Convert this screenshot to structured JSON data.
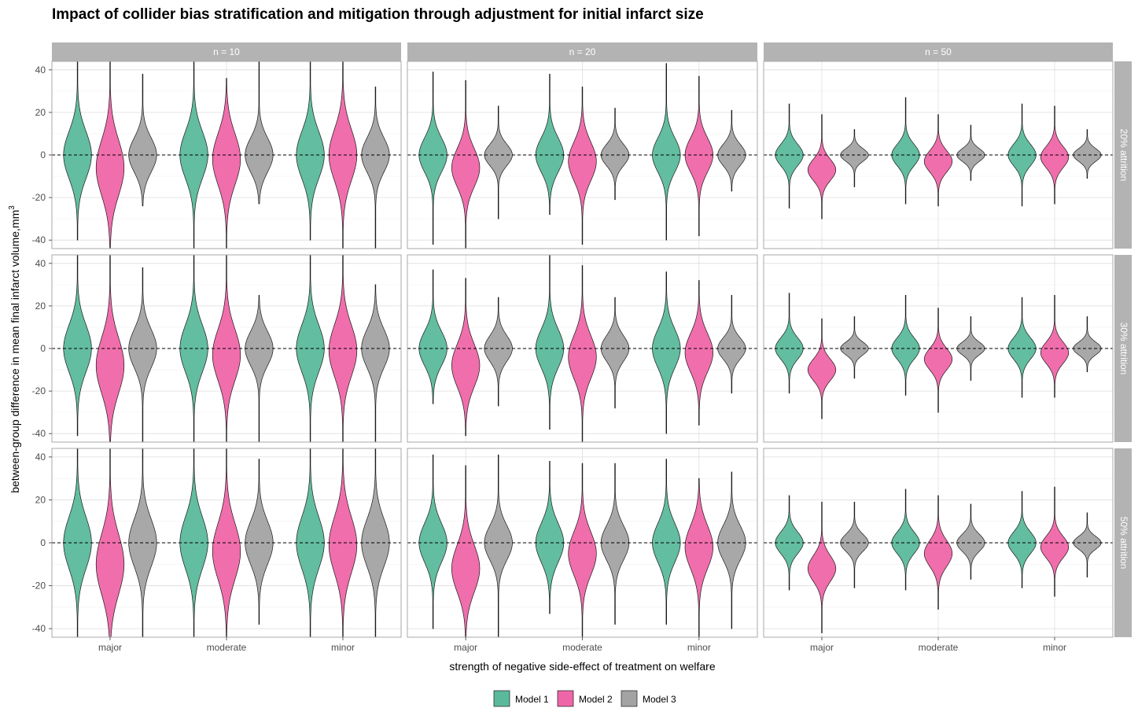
{
  "chart_data": {
    "type": "violin",
    "title": "Impact of collider bias stratification and mitigation through adjustment for initial infarct size",
    "xlabel": "strength of negative side-effect of treatment on welfare",
    "ylabel": "between-group difference in mean final infarct volume,mm",
    "ylabel_superscript": "3",
    "ylim": [
      -44,
      44
    ],
    "y_ticks": [
      -40,
      -20,
      0,
      20,
      40
    ],
    "reference_line_y": 0,
    "grid": true,
    "legend_position": "bottom",
    "categories": [
      "major",
      "moderate",
      "minor"
    ],
    "col_facets": [
      "n = 10",
      "n = 20",
      "n = 50"
    ],
    "row_facets": [
      "20% attrition",
      "30% attrition",
      "50% attrition"
    ],
    "series": [
      {
        "name": "Model 1",
        "color": "#5bb99b"
      },
      {
        "name": "Model 2",
        "color": "#ef66a8"
      },
      {
        "name": "Model 3",
        "color": "#a3a3a3"
      }
    ],
    "panels": [
      {
        "row": "20% attrition",
        "col": "n = 10",
        "violins": [
          {
            "category": "major",
            "series": "Model 1",
            "center": 0,
            "lo": -40,
            "hi": 44,
            "sd": 11
          },
          {
            "category": "major",
            "series": "Model 2",
            "center": -6,
            "lo": -44,
            "hi": 44,
            "sd": 13
          },
          {
            "category": "major",
            "series": "Model 3",
            "center": 0,
            "lo": -24,
            "hi": 38,
            "sd": 8
          },
          {
            "category": "moderate",
            "series": "Model 1",
            "center": 0,
            "lo": -44,
            "hi": 44,
            "sd": 11
          },
          {
            "category": "moderate",
            "series": "Model 2",
            "center": -2,
            "lo": -44,
            "hi": 36,
            "sd": 12
          },
          {
            "category": "moderate",
            "series": "Model 3",
            "center": 0,
            "lo": -23,
            "hi": 44,
            "sd": 8
          },
          {
            "category": "minor",
            "series": "Model 1",
            "center": 0,
            "lo": -40,
            "hi": 44,
            "sd": 11
          },
          {
            "category": "minor",
            "series": "Model 2",
            "center": 0,
            "lo": -44,
            "hi": 44,
            "sd": 12
          },
          {
            "category": "minor",
            "series": "Model 3",
            "center": 0,
            "lo": -44,
            "hi": 32,
            "sd": 8
          }
        ]
      },
      {
        "row": "20% attrition",
        "col": "n = 20",
        "violins": [
          {
            "category": "major",
            "series": "Model 1",
            "center": 0,
            "lo": -42,
            "hi": 39,
            "sd": 8
          },
          {
            "category": "major",
            "series": "Model 2",
            "center": -6,
            "lo": -44,
            "hi": 35,
            "sd": 9
          },
          {
            "category": "major",
            "series": "Model 3",
            "center": 0,
            "lo": -30,
            "hi": 23,
            "sd": 5
          },
          {
            "category": "moderate",
            "series": "Model 1",
            "center": 0,
            "lo": -28,
            "hi": 38,
            "sd": 8
          },
          {
            "category": "moderate",
            "series": "Model 2",
            "center": -3,
            "lo": -42,
            "hi": 32,
            "sd": 9
          },
          {
            "category": "moderate",
            "series": "Model 3",
            "center": 0,
            "lo": -21,
            "hi": 22,
            "sd": 5
          },
          {
            "category": "minor",
            "series": "Model 1",
            "center": 0,
            "lo": -40,
            "hi": 43,
            "sd": 8
          },
          {
            "category": "minor",
            "series": "Model 2",
            "center": 0,
            "lo": -38,
            "hi": 37,
            "sd": 8
          },
          {
            "category": "minor",
            "series": "Model 3",
            "center": 0,
            "lo": -17,
            "hi": 21,
            "sd": 5
          }
        ]
      },
      {
        "row": "20% attrition",
        "col": "n = 50",
        "violins": [
          {
            "category": "major",
            "series": "Model 1",
            "center": 0,
            "lo": -25,
            "hi": 24,
            "sd": 5
          },
          {
            "category": "major",
            "series": "Model 2",
            "center": -7,
            "lo": -30,
            "hi": 19,
            "sd": 5
          },
          {
            "category": "major",
            "series": "Model 3",
            "center": 0,
            "lo": -15,
            "hi": 12,
            "sd": 3
          },
          {
            "category": "moderate",
            "series": "Model 1",
            "center": 0,
            "lo": -23,
            "hi": 27,
            "sd": 5
          },
          {
            "category": "moderate",
            "series": "Model 2",
            "center": -3,
            "lo": -24,
            "hi": 19,
            "sd": 5
          },
          {
            "category": "moderate",
            "series": "Model 3",
            "center": 0,
            "lo": -12,
            "hi": 14,
            "sd": 3
          },
          {
            "category": "minor",
            "series": "Model 1",
            "center": 0,
            "lo": -24,
            "hi": 24,
            "sd": 5
          },
          {
            "category": "minor",
            "series": "Model 2",
            "center": -1,
            "lo": -23,
            "hi": 23,
            "sd": 5
          },
          {
            "category": "minor",
            "series": "Model 3",
            "center": 0,
            "lo": -11,
            "hi": 12,
            "sd": 3
          }
        ]
      },
      {
        "row": "30% attrition",
        "col": "n = 10",
        "violins": [
          {
            "category": "major",
            "series": "Model 1",
            "center": 0,
            "lo": -41,
            "hi": 44,
            "sd": 11
          },
          {
            "category": "major",
            "series": "Model 2",
            "center": -8,
            "lo": -44,
            "hi": 44,
            "sd": 13
          },
          {
            "category": "major",
            "series": "Model 3",
            "center": 0,
            "lo": -44,
            "hi": 38,
            "sd": 9
          },
          {
            "category": "moderate",
            "series": "Model 1",
            "center": 0,
            "lo": -44,
            "hi": 44,
            "sd": 11
          },
          {
            "category": "moderate",
            "series": "Model 2",
            "center": -3,
            "lo": -44,
            "hi": 44,
            "sd": 12
          },
          {
            "category": "moderate",
            "series": "Model 3",
            "center": 0,
            "lo": -44,
            "hi": 25,
            "sd": 8
          },
          {
            "category": "minor",
            "series": "Model 1",
            "center": 0,
            "lo": -44,
            "hi": 44,
            "sd": 11
          },
          {
            "category": "minor",
            "series": "Model 2",
            "center": -1,
            "lo": -44,
            "hi": 44,
            "sd": 12
          },
          {
            "category": "minor",
            "series": "Model 3",
            "center": 0,
            "lo": -44,
            "hi": 30,
            "sd": 9
          }
        ]
      },
      {
        "row": "30% attrition",
        "col": "n = 20",
        "violins": [
          {
            "category": "major",
            "series": "Model 1",
            "center": 0,
            "lo": -26,
            "hi": 37,
            "sd": 8
          },
          {
            "category": "major",
            "series": "Model 2",
            "center": -8,
            "lo": -41,
            "hi": 33,
            "sd": 10
          },
          {
            "category": "major",
            "series": "Model 3",
            "center": 0,
            "lo": -27,
            "hi": 24,
            "sd": 6
          },
          {
            "category": "moderate",
            "series": "Model 1",
            "center": 0,
            "lo": -38,
            "hi": 44,
            "sd": 9
          },
          {
            "category": "moderate",
            "series": "Model 2",
            "center": -4,
            "lo": -44,
            "hi": 39,
            "sd": 10
          },
          {
            "category": "moderate",
            "series": "Model 3",
            "center": 0,
            "lo": -28,
            "hi": 24,
            "sd": 6
          },
          {
            "category": "minor",
            "series": "Model 1",
            "center": 0,
            "lo": -40,
            "hi": 36,
            "sd": 9
          },
          {
            "category": "minor",
            "series": "Model 2",
            "center": -2,
            "lo": -36,
            "hi": 32,
            "sd": 9
          },
          {
            "category": "minor",
            "series": "Model 3",
            "center": 0,
            "lo": -21,
            "hi": 25,
            "sd": 5
          }
        ]
      },
      {
        "row": "30% attrition",
        "col": "n = 50",
        "violins": [
          {
            "category": "major",
            "series": "Model 1",
            "center": 0,
            "lo": -21,
            "hi": 26,
            "sd": 5
          },
          {
            "category": "major",
            "series": "Model 2",
            "center": -10,
            "lo": -33,
            "hi": 14,
            "sd": 5
          },
          {
            "category": "major",
            "series": "Model 3",
            "center": 0,
            "lo": -14,
            "hi": 15,
            "sd": 3
          },
          {
            "category": "moderate",
            "series": "Model 1",
            "center": 0,
            "lo": -22,
            "hi": 25,
            "sd": 5
          },
          {
            "category": "moderate",
            "series": "Model 2",
            "center": -5,
            "lo": -30,
            "hi": 19,
            "sd": 5
          },
          {
            "category": "moderate",
            "series": "Model 3",
            "center": 0,
            "lo": -15,
            "hi": 15,
            "sd": 3
          },
          {
            "category": "minor",
            "series": "Model 1",
            "center": 0,
            "lo": -23,
            "hi": 24,
            "sd": 5
          },
          {
            "category": "minor",
            "series": "Model 2",
            "center": -2,
            "lo": -23,
            "hi": 25,
            "sd": 5
          },
          {
            "category": "minor",
            "series": "Model 3",
            "center": 0,
            "lo": -11,
            "hi": 15,
            "sd": 3
          }
        ]
      },
      {
        "row": "50% attrition",
        "col": "n = 10",
        "violins": [
          {
            "category": "major",
            "series": "Model 1",
            "center": 0,
            "lo": -44,
            "hi": 44,
            "sd": 12
          },
          {
            "category": "major",
            "series": "Model 2",
            "center": -10,
            "lo": -44,
            "hi": 44,
            "sd": 14
          },
          {
            "category": "major",
            "series": "Model 3",
            "center": 0,
            "lo": -44,
            "hi": 44,
            "sd": 11
          },
          {
            "category": "moderate",
            "series": "Model 1",
            "center": 0,
            "lo": -44,
            "hi": 44,
            "sd": 12
          },
          {
            "category": "moderate",
            "series": "Model 2",
            "center": -4,
            "lo": -44,
            "hi": 44,
            "sd": 13
          },
          {
            "category": "moderate",
            "series": "Model 3",
            "center": 0,
            "lo": -38,
            "hi": 39,
            "sd": 10
          },
          {
            "category": "minor",
            "series": "Model 1",
            "center": 0,
            "lo": -44,
            "hi": 44,
            "sd": 12
          },
          {
            "category": "minor",
            "series": "Model 2",
            "center": -1,
            "lo": -44,
            "hi": 44,
            "sd": 13
          },
          {
            "category": "minor",
            "series": "Model 3",
            "center": 0,
            "lo": -44,
            "hi": 44,
            "sd": 11
          }
        ]
      },
      {
        "row": "50% attrition",
        "col": "n = 20",
        "violins": [
          {
            "category": "major",
            "series": "Model 1",
            "center": 0,
            "lo": -40,
            "hi": 41,
            "sd": 9
          },
          {
            "category": "major",
            "series": "Model 2",
            "center": -12,
            "lo": -44,
            "hi": 36,
            "sd": 11
          },
          {
            "category": "major",
            "series": "Model 3",
            "center": 0,
            "lo": -44,
            "hi": 41,
            "sd": 8
          },
          {
            "category": "moderate",
            "series": "Model 1",
            "center": 0,
            "lo": -33,
            "hi": 38,
            "sd": 9
          },
          {
            "category": "moderate",
            "series": "Model 2",
            "center": -5,
            "lo": -44,
            "hi": 37,
            "sd": 10
          },
          {
            "category": "moderate",
            "series": "Model 3",
            "center": 0,
            "lo": -38,
            "hi": 37,
            "sd": 8
          },
          {
            "category": "minor",
            "series": "Model 1",
            "center": 0,
            "lo": -38,
            "hi": 39,
            "sd": 9
          },
          {
            "category": "minor",
            "series": "Model 2",
            "center": -2,
            "lo": -44,
            "hi": 30,
            "sd": 10
          },
          {
            "category": "minor",
            "series": "Model 3",
            "center": 0,
            "lo": -40,
            "hi": 33,
            "sd": 8
          }
        ]
      },
      {
        "row": "50% attrition",
        "col": "n = 50",
        "violins": [
          {
            "category": "major",
            "series": "Model 1",
            "center": 0,
            "lo": -22,
            "hi": 22,
            "sd": 5
          },
          {
            "category": "major",
            "series": "Model 2",
            "center": -12,
            "lo": -42,
            "hi": 19,
            "sd": 6
          },
          {
            "category": "major",
            "series": "Model 3",
            "center": 0,
            "lo": -21,
            "hi": 19,
            "sd": 4
          },
          {
            "category": "moderate",
            "series": "Model 1",
            "center": 0,
            "lo": -22,
            "hi": 25,
            "sd": 5
          },
          {
            "category": "moderate",
            "series": "Model 2",
            "center": -5,
            "lo": -31,
            "hi": 22,
            "sd": 6
          },
          {
            "category": "moderate",
            "series": "Model 3",
            "center": 0,
            "lo": -17,
            "hi": 18,
            "sd": 4
          },
          {
            "category": "minor",
            "series": "Model 1",
            "center": 0,
            "lo": -21,
            "hi": 24,
            "sd": 5
          },
          {
            "category": "minor",
            "series": "Model 2",
            "center": -2,
            "lo": -25,
            "hi": 26,
            "sd": 5
          },
          {
            "category": "minor",
            "series": "Model 3",
            "center": 0,
            "lo": -16,
            "hi": 14,
            "sd": 3
          }
        ]
      }
    ]
  }
}
